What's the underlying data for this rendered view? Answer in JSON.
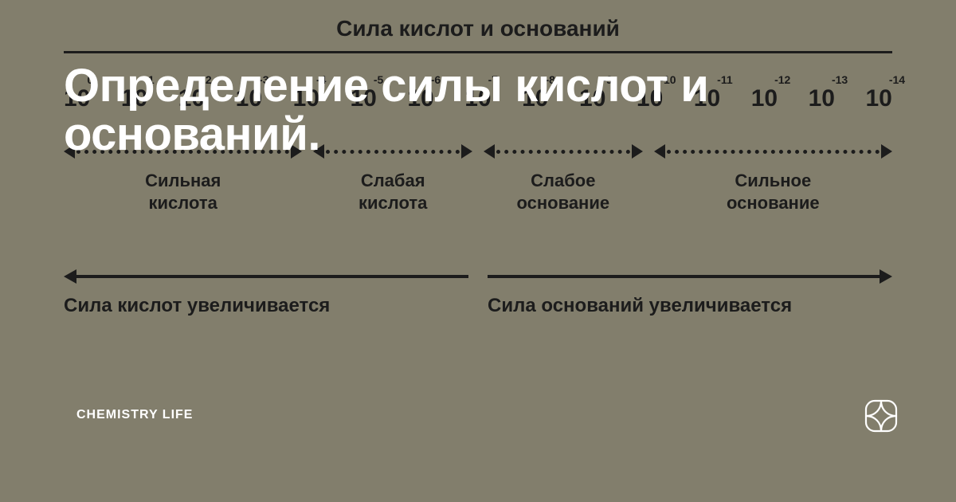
{
  "background_color": "#827e6c",
  "diagram": {
    "title": "Сила кислот и оснований",
    "text_color": "#1c1c1c",
    "line_color": "#1c1c1c",
    "ticks": {
      "base": "10",
      "exponents": [
        "0",
        "-1",
        "-2",
        "-3",
        "-4",
        "-5",
        "-6",
        "-7",
        "-8",
        "-9",
        "-10",
        "-11",
        "-12",
        "-13",
        "-14"
      ]
    },
    "sections": [
      {
        "label": "Сильная\nкислота",
        "wide": true
      },
      {
        "label": "Слабая\nкислота",
        "wide": false
      },
      {
        "label": "Слабое\nоснование",
        "wide": false
      },
      {
        "label": "Сильное\nоснование",
        "wide": true
      }
    ],
    "bottom": {
      "left_label": "Сила кислот увеличивается",
      "right_label": "Сила оснований увеличивается"
    }
  },
  "overlay": {
    "headline": "Определение силы кислот и оснований.",
    "brand": "CHEMISTRY LIFE",
    "headline_color": "#ffffff",
    "brand_color": "#ffffff",
    "icon_color": "#ffffff"
  }
}
